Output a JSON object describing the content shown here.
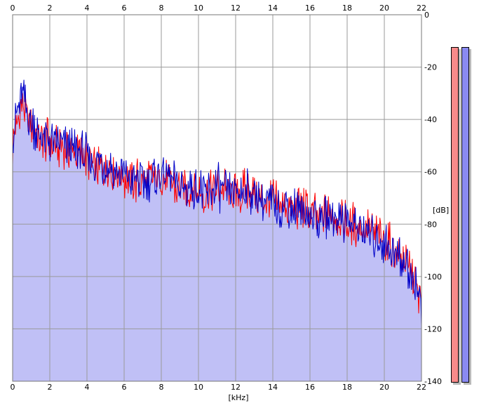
{
  "axes": {
    "x_unit": "[kHz]",
    "y_unit": "[dB]",
    "x_ticks_top": [
      "0",
      "2",
      "4",
      "6",
      "8",
      "10",
      "12",
      "14",
      "16",
      "18",
      "20",
      "22"
    ],
    "x_ticks_bottom": [
      "0",
      "2",
      "4",
      "6",
      "8",
      "10",
      "12",
      "14",
      "16",
      "18",
      "20",
      "22"
    ],
    "y_ticks": [
      "0",
      "-20",
      "-40",
      "-60",
      "-80",
      "-100",
      "-120",
      "-140"
    ]
  },
  "colors": {
    "fill": "#c0c0f6",
    "left_channel": "#ff0000",
    "right_channel": "#0000c8",
    "meter_left": "#f88a8a",
    "meter_right": "#8a8af2"
  },
  "meters": {
    "left_level": 1.0,
    "right_level": 1.0
  },
  "chart_data": {
    "type": "line",
    "xlim": [
      0,
      22
    ],
    "ylim": [
      -140,
      0
    ],
    "grid": true,
    "x": [
      0,
      0.5,
      1,
      1.5,
      2,
      2.5,
      3,
      3.5,
      4,
      4.5,
      5,
      5.5,
      6,
      6.5,
      7,
      7.5,
      8,
      8.5,
      9,
      9.5,
      10,
      10.5,
      11,
      11.5,
      12,
      12.5,
      13,
      13.5,
      14,
      14.5,
      15,
      15.5,
      16,
      16.5,
      17,
      17.5,
      18,
      18.5,
      19,
      19.5,
      20,
      20.5,
      21,
      21.5,
      22
    ],
    "series": [
      {
        "values": [
          -50,
          -34,
          -42,
          -47,
          -49,
          -51,
          -52,
          -53,
          -55,
          -58,
          -58,
          -60,
          -62,
          -64,
          -63,
          -64,
          -62,
          -64,
          -67,
          -66,
          -68,
          -69,
          -67,
          -68,
          -69,
          -68,
          -68,
          -70,
          -71,
          -73,
          -74,
          -74,
          -76,
          -78,
          -76,
          -77,
          -79,
          -81,
          -82,
          -84,
          -86,
          -90,
          -93,
          -98,
          -110
        ]
      },
      {
        "values": [
          -45,
          -32,
          -41,
          -46,
          -48,
          -50,
          -51,
          -52,
          -54,
          -57,
          -57,
          -60,
          -61,
          -63,
          -63,
          -63,
          -61,
          -63,
          -66,
          -66,
          -67,
          -68,
          -66,
          -67,
          -68,
          -67,
          -68,
          -70,
          -71,
          -73,
          -74,
          -75,
          -77,
          -79,
          -77,
          -77,
          -79,
          -81,
          -83,
          -85,
          -87,
          -91,
          -94,
          -100,
          -111
        ]
      }
    ]
  }
}
